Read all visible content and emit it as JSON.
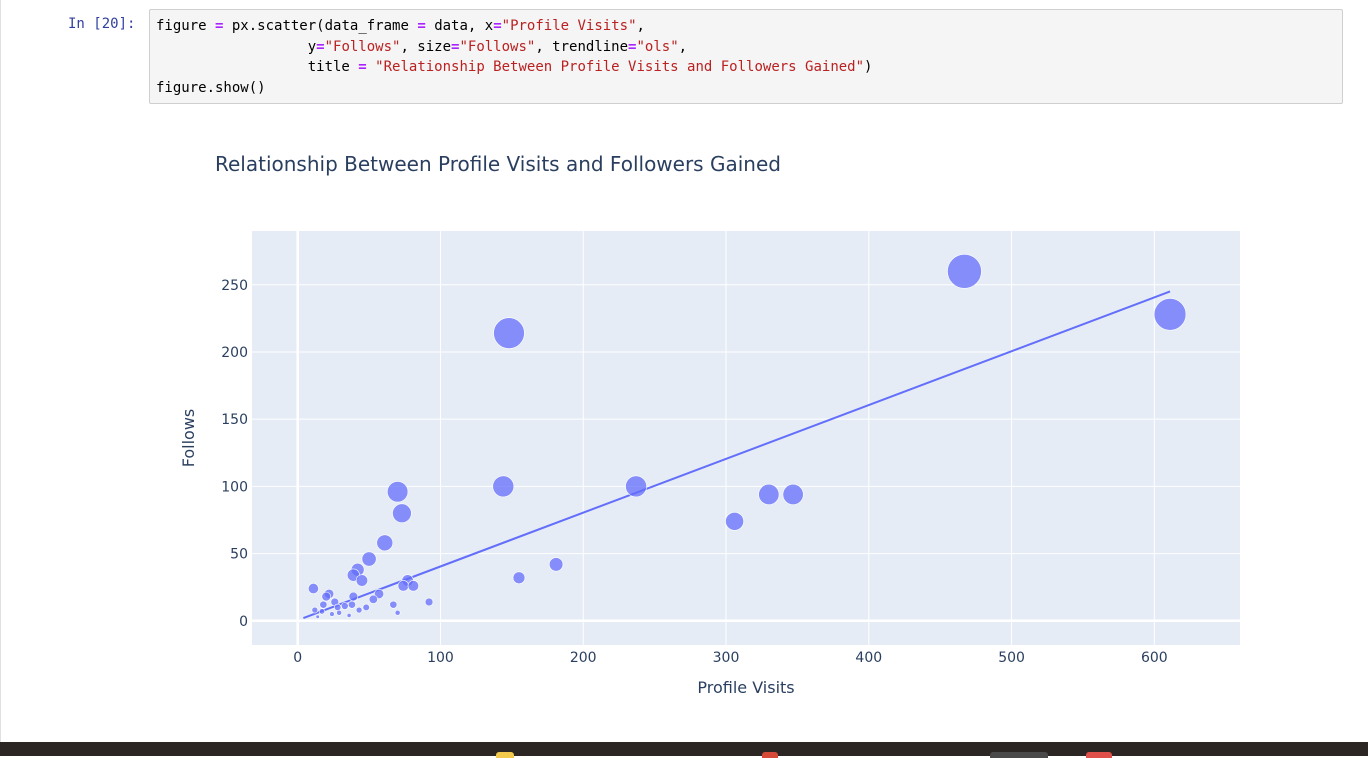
{
  "notebook": {
    "prompt": "In [20]:",
    "code": {
      "line1": {
        "a": "figure ",
        "op1": "=",
        "b": " px.scatter(data_frame ",
        "op2": "=",
        "c": " data, x",
        "op3": "=",
        "s1": "\"Profile Visits\"",
        "d": ","
      },
      "line2": {
        "indent": "                  ",
        "a": "y",
        "op1": "=",
        "s1": "\"Follows\"",
        "b": ", size",
        "op2": "=",
        "s2": "\"Follows\"",
        "c": ", trendline",
        "op3": "=",
        "s3": "\"ols\"",
        "d": ","
      },
      "line3": {
        "indent": "                  ",
        "a": "title ",
        "op1": "=",
        "b": " ",
        "s1": "\"Relationship Between Profile Visits and Followers Gained\"",
        "c": ")"
      },
      "line4": {
        "a": "figure.show()"
      }
    }
  },
  "colors": {
    "plot_bg": "#e5ecf6",
    "marker": "#636efa",
    "trendline": "#636efa",
    "text": "#2a3f5f",
    "code_string": "#ba2121",
    "code_operator": "#aa22ff",
    "prompt": "#303f9f"
  },
  "chart_data": {
    "type": "scatter",
    "title": "Relationship Between Profile Visits and Followers Gained",
    "xlabel": "Profile Visits",
    "ylabel": "Follows",
    "xlim": [
      -32,
      660
    ],
    "ylim": [
      -18,
      290
    ],
    "xticks": [
      0,
      100,
      200,
      300,
      400,
      500,
      600
    ],
    "yticks": [
      0,
      50,
      100,
      150,
      200,
      250
    ],
    "grid": true,
    "size_encoding": "Follows",
    "points": [
      [
        467,
        260
      ],
      [
        611,
        228
      ],
      [
        148,
        214
      ],
      [
        70,
        96
      ],
      [
        144,
        100
      ],
      [
        237,
        100
      ],
      [
        73,
        80
      ],
      [
        330,
        94
      ],
      [
        347,
        94
      ],
      [
        306,
        74
      ],
      [
        61,
        58
      ],
      [
        50,
        46
      ],
      [
        181,
        42
      ],
      [
        42,
        38
      ],
      [
        39,
        34
      ],
      [
        155,
        32
      ],
      [
        45,
        30
      ],
      [
        77,
        30
      ],
      [
        74,
        26
      ],
      [
        81,
        26
      ],
      [
        11,
        24
      ],
      [
        22,
        20
      ],
      [
        57,
        20
      ],
      [
        20,
        18
      ],
      [
        39,
        18
      ],
      [
        53,
        16
      ],
      [
        26,
        14
      ],
      [
        92,
        14
      ],
      [
        18,
        12
      ],
      [
        38,
        12
      ],
      [
        67,
        12
      ],
      [
        33,
        11
      ],
      [
        28,
        10
      ],
      [
        48,
        10
      ],
      [
        12,
        8
      ],
      [
        43,
        8
      ],
      [
        17,
        7
      ],
      [
        29,
        6
      ],
      [
        70,
        6
      ],
      [
        24,
        5
      ],
      [
        36,
        4
      ],
      [
        14,
        3
      ]
    ],
    "trendline": {
      "x": [
        4,
        611
      ],
      "y": [
        2,
        245
      ]
    }
  }
}
